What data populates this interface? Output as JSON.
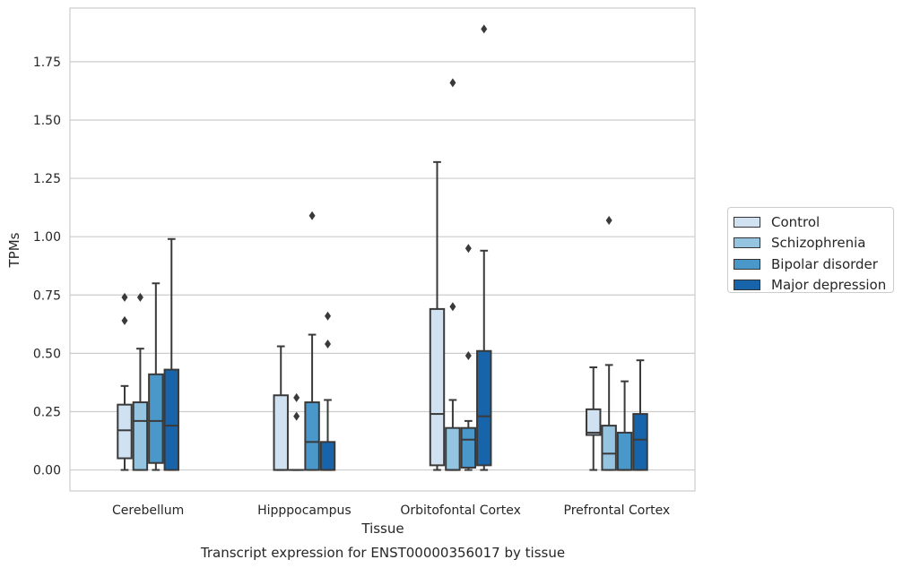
{
  "chart_data": {
    "type": "box",
    "title": "Transcript expression for ENST00000356017 by tissue",
    "xlabel": "Tissue",
    "ylabel": "TPMs",
    "ylim": [
      -0.09,
      1.98
    ],
    "yticks": [
      "0.00",
      "0.25",
      "0.50",
      "0.75",
      "1.00",
      "1.25",
      "1.50",
      "1.75"
    ],
    "categories": [
      "Cerebellum",
      "Hipppocampus",
      "Orbitofontal Cortex",
      "Prefrontal Cortex"
    ],
    "grid": "horizontal",
    "legend_position": "right",
    "series": [
      {
        "name": "Control",
        "color": "#d0e1f2",
        "boxes": [
          {
            "q1": 0.05,
            "median": 0.17,
            "q3": 0.28,
            "whisker_low": 0.0,
            "whisker_high": 0.36,
            "outliers": [
              0.64,
              0.74
            ]
          },
          {
            "q1": 0.0,
            "median": 0.0,
            "q3": 0.32,
            "whisker_low": 0.0,
            "whisker_high": 0.53,
            "outliers": []
          },
          {
            "q1": 0.02,
            "median": 0.24,
            "q3": 0.69,
            "whisker_low": 0.0,
            "whisker_high": 1.32,
            "outliers": []
          },
          {
            "q1": 0.15,
            "median": 0.16,
            "q3": 0.26,
            "whisker_low": 0.0,
            "whisker_high": 0.44,
            "outliers": []
          }
        ]
      },
      {
        "name": "Schizophrenia",
        "color": "#94c4df",
        "boxes": [
          {
            "q1": 0.0,
            "median": 0.21,
            "q3": 0.29,
            "whisker_low": 0.0,
            "whisker_high": 0.52,
            "outliers": [
              0.74
            ]
          },
          {
            "q1": 0.0,
            "median": 0.0,
            "q3": 0.0,
            "whisker_low": 0.0,
            "whisker_high": 0.0,
            "outliers": [
              0.23,
              0.31
            ]
          },
          {
            "q1": 0.0,
            "median": 0.0,
            "q3": 0.18,
            "whisker_low": 0.0,
            "whisker_high": 0.3,
            "outliers": [
              0.7,
              1.66
            ]
          },
          {
            "q1": 0.0,
            "median": 0.07,
            "q3": 0.19,
            "whisker_low": 0.0,
            "whisker_high": 0.45,
            "outliers": [
              1.07
            ]
          }
        ]
      },
      {
        "name": "Bipolar disorder",
        "color": "#4a98c9",
        "boxes": [
          {
            "q1": 0.03,
            "median": 0.21,
            "q3": 0.41,
            "whisker_low": 0.0,
            "whisker_high": 0.8,
            "outliers": []
          },
          {
            "q1": 0.0,
            "median": 0.12,
            "q3": 0.29,
            "whisker_low": 0.0,
            "whisker_high": 0.58,
            "outliers": [
              1.09
            ]
          },
          {
            "q1": 0.01,
            "median": 0.13,
            "q3": 0.18,
            "whisker_low": 0.0,
            "whisker_high": 0.21,
            "outliers": [
              0.49,
              0.95
            ]
          },
          {
            "q1": 0.0,
            "median": 0.0,
            "q3": 0.16,
            "whisker_low": 0.0,
            "whisker_high": 0.38,
            "outliers": []
          }
        ]
      },
      {
        "name": "Major depression",
        "color": "#1764ab",
        "boxes": [
          {
            "q1": 0.0,
            "median": 0.19,
            "q3": 0.43,
            "whisker_low": 0.0,
            "whisker_high": 0.99,
            "outliers": []
          },
          {
            "q1": 0.0,
            "median": 0.0,
            "q3": 0.12,
            "whisker_low": 0.0,
            "whisker_high": 0.3,
            "outliers": [
              0.54,
              0.66
            ]
          },
          {
            "q1": 0.02,
            "median": 0.23,
            "q3": 0.51,
            "whisker_low": 0.0,
            "whisker_high": 0.94,
            "outliers": [
              1.89
            ]
          },
          {
            "q1": 0.0,
            "median": 0.13,
            "q3": 0.24,
            "whisker_low": 0.0,
            "whisker_high": 0.47,
            "outliers": []
          }
        ]
      }
    ]
  }
}
